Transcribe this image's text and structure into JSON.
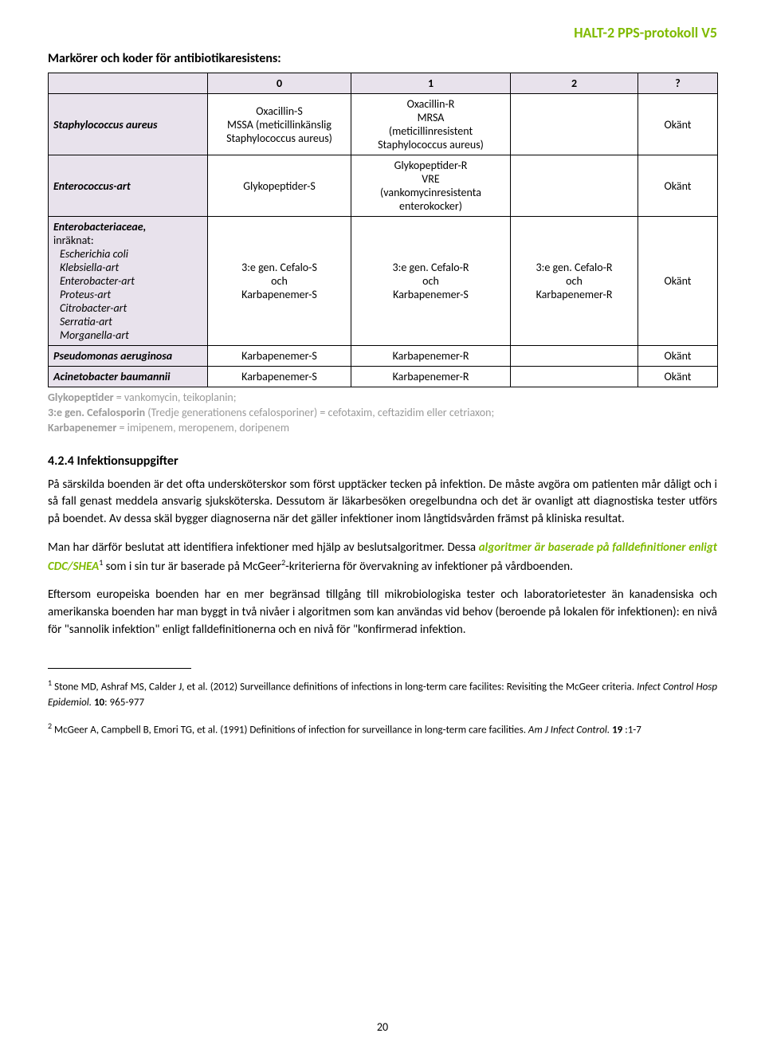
{
  "header": {
    "right": "HALT-2 PPS-protokoll V5"
  },
  "title": "Markörer och koder för antibiotikaresistens:",
  "table": {
    "head": [
      "0",
      "1",
      "2",
      "?"
    ],
    "rows": [
      {
        "label": "Staphylococcus aureus",
        "c0": "Oxacillin-S\nMSSA (meticillinkänslig\nStaphylococcus aureus)",
        "c1": "Oxacillin-R\nMRSA\n(meticillinresistent\nStaphylococcus aureus)",
        "c2": "",
        "cq": "Okänt"
      },
      {
        "label": "Enterococcus-art",
        "c0": "Glykopeptider-S",
        "c1": "Glykopeptider-R\nVRE\n(vankomycinresistenta\nenterokocker)",
        "c2": "",
        "cq": "Okänt"
      },
      {
        "label_html": "entero_special",
        "label_title": "Enterobacteriaceae",
        "label_note": "inräknat:",
        "label_list": [
          "Escherichia coli",
          "Klebsiella-art",
          "Enterobacter-art",
          "Proteus-art",
          "Citrobacter-art",
          "Serratia-art",
          "Morganella-art"
        ],
        "c0": "3:e gen. Cefalo-S\noch\nKarbapenemer-S",
        "c1": "3:e gen. Cefalo-R\noch\nKarbapenemer-S",
        "c2": "3:e gen. Cefalo-R\noch\nKarbapenemer-R",
        "cq": "Okänt"
      },
      {
        "label": "Pseudomonas aeruginosa",
        "c0": "Karbapenemer-S",
        "c1": "Karbapenemer-R",
        "c2": "",
        "cq": "Okänt"
      },
      {
        "label": "Acinetobacter baumannii",
        "c0": "Karbapenemer-S",
        "c1": "Karbapenemer-R",
        "c2": "",
        "cq": "Okänt"
      }
    ]
  },
  "note_lines": {
    "l1a": "Glykopeptider",
    "l1b": " = vankomycin, teikoplanin;",
    "l2a": "3:e gen. Cefalosporin",
    "l2b": " (Tredje generationens cefalosporiner) = cefotaxim, ceftazidim eller cetriaxon;",
    "l3a": "Karbapenemer",
    "l3b": " = imipenem, meropenem, doripenem"
  },
  "section_heading": "4.2.4 Infektionsuppgifter",
  "para1": "På särskilda boenden är det ofta undersköterskor som först upptäcker tecken på infektion. De måste avgöra om patienten mår dåligt och i så fall genast meddela ansvarig sjuksköterska. Dessutom är läkarbesöken oregelbundna och det är ovanligt att diagnostiska tester utförs på boendet. Av dessa skäl bygger diagnoserna när det gäller infektioner inom långtidsvården främst på kliniska resultat.",
  "para2_pre": "Man har därför beslutat att identifiera infektioner med hjälp av beslutsalgoritmer. Dessa ",
  "para2_emph": "algoritmer är baserade på falldefinitioner enligt CDC/SHEA",
  "para2_sup1": "1",
  "para2_mid": " som i sin tur är baserade på McGeer",
  "para2_sup2": "2",
  "para2_post": "-kriterierna för övervakning av infektioner på vårdboenden.",
  "para3": "Eftersom europeiska boenden har en mer begränsad tillgång till mikrobiologiska tester och laboratorietester än kanadensiska och amerikanska boenden har man byggt in två nivåer i algoritmen som kan användas vid behov (beroende på lokalen för infektionen): en nivå för \"sannolik infektion\" enligt falldefinitionerna och en nivå för \"konfirmerad infektion.",
  "footnotes": {
    "f1_idx": "1",
    "f1_a": " Stone MD, Ashraf MS, Calder J, et al. (2012) Surveillance definitions of infections in long-term care facilites: Revisiting the McGeer criteria. ",
    "f1_i": "Infect Control Hosp Epidemiol.",
    "f1_b": " 10",
    "f1_c": ": 965-977",
    "f2_idx": "2",
    "f2_a": " McGeer A, Campbell B, Emori TG,  et al. (1991)  Definitions of infection for surveillance in long-term care facilities. ",
    "f2_i": "Am J Infect Control.",
    "f2_b": " 19 ",
    "f2_c": ":1-7"
  },
  "page_number": "20"
}
